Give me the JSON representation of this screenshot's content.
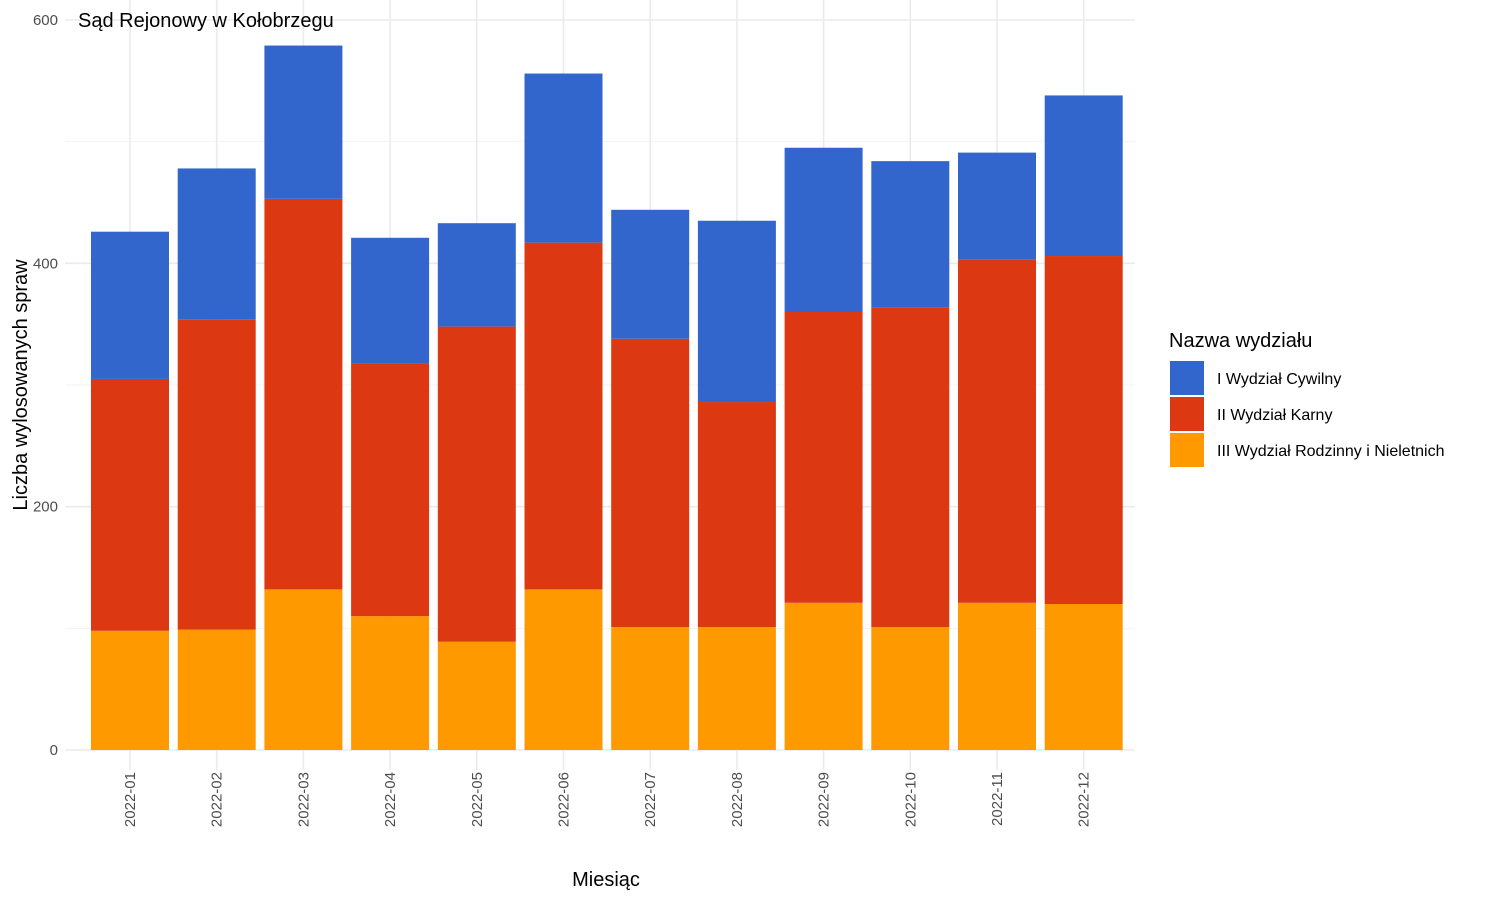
{
  "chart_data": {
    "type": "bar",
    "stacked": true,
    "title": "Sąd Rejonowy w Kołobrzegu",
    "xlabel": "Miesiąc",
    "ylabel": "Liczba wylosowanych spraw",
    "ylim": [
      0,
      600
    ],
    "yticks": [
      0,
      200,
      400,
      600
    ],
    "grid": true,
    "legend_position": "right",
    "legend_title": "Nazwa wydziału",
    "categories": [
      "2022-01",
      "2022-02",
      "2022-03",
      "2022-04",
      "2022-05",
      "2022-06",
      "2022-07",
      "2022-08",
      "2022-09",
      "2022-10",
      "2022-11",
      "2022-12"
    ],
    "series": [
      {
        "name": "III Wydział Rodzinny i Nieletnich",
        "color": "#ff9900",
        "values": [
          98,
          99,
          132,
          110,
          89,
          132,
          101,
          101,
          121,
          101,
          121,
          120
        ]
      },
      {
        "name": "II Wydział Karny",
        "color": "#dc3912",
        "values": [
          207,
          255,
          321,
          208,
          259,
          285,
          237,
          185,
          239,
          263,
          282,
          286
        ]
      },
      {
        "name": "I Wydział Cywilny",
        "color": "#3366cc",
        "values": [
          121,
          124,
          126,
          103,
          85,
          139,
          106,
          149,
          135,
          120,
          88,
          132
        ]
      }
    ],
    "legend_order": [
      "I Wydział Cywilny",
      "II Wydział Karny",
      "III Wydział Rodzinny i Nieletnich"
    ]
  }
}
